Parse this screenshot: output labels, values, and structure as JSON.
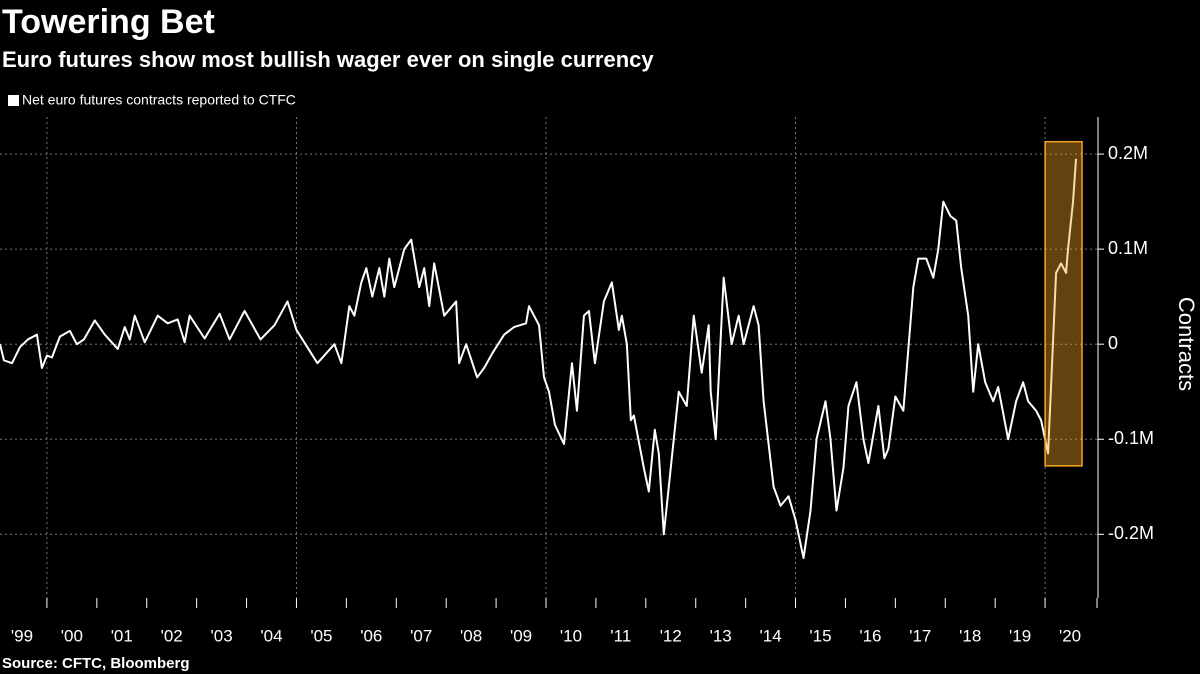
{
  "chart_data": {
    "type": "line",
    "title": "Towering Bet",
    "subtitle": "Euro futures show most bullish wager ever on single currency",
    "source": "Source: CFTC, Bloomberg",
    "ylabel": "Contracts",
    "grid": true,
    "legend": "top-left",
    "x": [
      1999.06,
      1999.14,
      1999.3,
      1999.46,
      1999.62,
      1999.8,
      1999.9,
      2000.0,
      2000.1,
      2000.26,
      2000.46,
      2000.6,
      2000.74,
      2000.96,
      2001.16,
      2001.42,
      2001.56,
      2001.66,
      2001.76,
      2001.96,
      2002.22,
      2002.42,
      2002.62,
      2002.76,
      2002.86,
      2003.16,
      2003.46,
      2003.66,
      2003.96,
      2004.28,
      2004.56,
      2004.82,
      2005.0,
      2005.42,
      2005.76,
      2005.9,
      2006.06,
      2006.16,
      2006.3,
      2006.4,
      2006.52,
      2006.66,
      2006.76,
      2006.86,
      2006.96,
      2007.16,
      2007.3,
      2007.46,
      2007.56,
      2007.66,
      2007.76,
      2007.96,
      2008.2,
      2008.26,
      2008.4,
      2008.62,
      2008.76,
      2008.92,
      2009.16,
      2009.36,
      2009.6,
      2009.66,
      2009.86,
      2009.96,
      2010.06,
      2010.18,
      2010.36,
      2010.52,
      2010.62,
      2010.76,
      2010.86,
      2010.98,
      2011.16,
      2011.32,
      2011.46,
      2011.52,
      2011.62,
      2011.7,
      2011.76,
      2011.96,
      2012.06,
      2012.18,
      2012.26,
      2012.36,
      2012.46,
      2012.66,
      2012.82,
      2012.96,
      2013.12,
      2013.26,
      2013.3,
      2013.4,
      2013.56,
      2013.72,
      2013.86,
      2013.96,
      2014.16,
      2014.26,
      2014.36,
      2014.56,
      2014.7,
      2014.86,
      2015.0,
      2015.16,
      2015.3,
      2015.42,
      2015.6,
      2015.7,
      2015.82,
      2015.96,
      2016.06,
      2016.22,
      2016.36,
      2016.46,
      2016.66,
      2016.78,
      2016.86,
      2017.0,
      2017.16,
      2017.36,
      2017.46,
      2017.62,
      2017.76,
      2017.86,
      2017.96,
      2018.1,
      2018.22,
      2018.32,
      2018.46,
      2018.56,
      2018.66,
      2018.8,
      2018.96,
      2019.06,
      2019.26,
      2019.42,
      2019.56,
      2019.66,
      2019.82,
      2019.92,
      2020.06,
      2020.22,
      2020.32,
      2020.42,
      2020.46,
      2020.56,
      2020.62
    ],
    "series": [
      {
        "name": "Net euro futures contracts reported to CTFC",
        "color": "#ffffff",
        "values": [
          0,
          -17000,
          -20000,
          -3000,
          5000,
          10000,
          -25000,
          -12000,
          -14000,
          8000,
          14000,
          0,
          5000,
          25000,
          10000,
          -5000,
          18000,
          5000,
          30000,
          2000,
          30000,
          22000,
          26000,
          2000,
          30000,
          6000,
          32000,
          5000,
          35000,
          5000,
          20000,
          45000,
          15000,
          -20000,
          0,
          -20000,
          40000,
          30000,
          65000,
          80000,
          50000,
          80000,
          50000,
          90000,
          60000,
          100000,
          110000,
          60000,
          80000,
          40000,
          85000,
          30000,
          45000,
          -20000,
          0,
          -35000,
          -25000,
          -10000,
          10000,
          18000,
          22000,
          40000,
          20000,
          -35000,
          -50000,
          -85000,
          -105000,
          -20000,
          -70000,
          30000,
          35000,
          -20000,
          45000,
          65000,
          15000,
          30000,
          0,
          -80000,
          -75000,
          -130000,
          -155000,
          -90000,
          -115000,
          -200000,
          -150000,
          -50000,
          -65000,
          30000,
          -30000,
          20000,
          -50000,
          -100000,
          70000,
          0,
          30000,
          0,
          40000,
          20000,
          -60000,
          -150000,
          -170000,
          -160000,
          -185000,
          -225000,
          -175000,
          -100000,
          -60000,
          -100000,
          -175000,
          -130000,
          -65000,
          -40000,
          -100000,
          -125000,
          -65000,
          -120000,
          -110000,
          -55000,
          -70000,
          60000,
          90000,
          90000,
          70000,
          100000,
          150000,
          135000,
          130000,
          80000,
          30000,
          -50000,
          0,
          -40000,
          -60000,
          -45000,
          -100000,
          -60000,
          -40000,
          -60000,
          -70000,
          -80000,
          -115000,
          75000,
          85000,
          75000,
          100000,
          150000,
          195000
        ]
      }
    ],
    "xlim": [
      1999.06,
      2021.0
    ],
    "xticks": [
      {
        "value": 1999.5,
        "label": "'99"
      },
      {
        "value": 2000.5,
        "label": "'00"
      },
      {
        "value": 2001.5,
        "label": "'01"
      },
      {
        "value": 2002.5,
        "label": "'02"
      },
      {
        "value": 2003.5,
        "label": "'03"
      },
      {
        "value": 2004.5,
        "label": "'04"
      },
      {
        "value": 2005.5,
        "label": "'05"
      },
      {
        "value": 2006.5,
        "label": "'06"
      },
      {
        "value": 2007.5,
        "label": "'07"
      },
      {
        "value": 2008.5,
        "label": "'08"
      },
      {
        "value": 2009.5,
        "label": "'09"
      },
      {
        "value": 2010.5,
        "label": "'10"
      },
      {
        "value": 2011.5,
        "label": "'11"
      },
      {
        "value": 2012.5,
        "label": "'12"
      },
      {
        "value": 2013.5,
        "label": "'13"
      },
      {
        "value": 2014.5,
        "label": "'14"
      },
      {
        "value": 2015.5,
        "label": "'15"
      },
      {
        "value": 2016.5,
        "label": "'16"
      },
      {
        "value": 2017.5,
        "label": "'17"
      },
      {
        "value": 2018.5,
        "label": "'18"
      },
      {
        "value": 2019.5,
        "label": "'19"
      },
      {
        "value": 2020.5,
        "label": "'20"
      }
    ],
    "x_gridlines": [
      2000,
      2005,
      2010,
      2015,
      2020
    ],
    "ylim": [
      -267000,
      239000
    ],
    "yticks": [
      {
        "value": 200000,
        "label": "0.2M"
      },
      {
        "value": 100000,
        "label": "0.1M"
      },
      0,
      {
        "value": -100000,
        "label": "-0.1M"
      },
      {
        "value": -200000,
        "label": "-0.2M"
      }
    ],
    "highlight": {
      "xlim": [
        2020.0,
        2020.74
      ],
      "ylim": [
        -128000,
        213000
      ],
      "color": "#f5a623"
    }
  }
}
